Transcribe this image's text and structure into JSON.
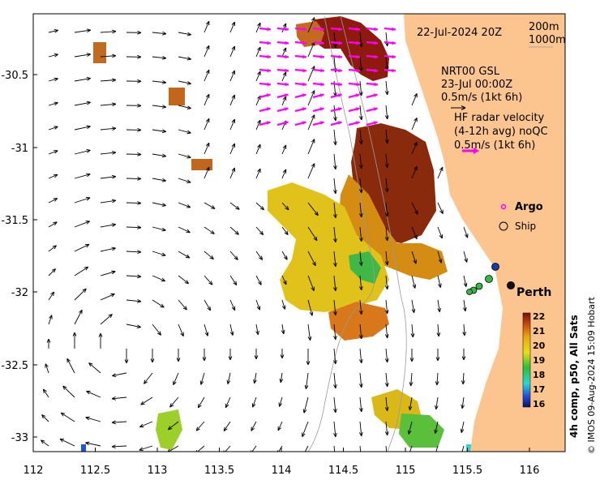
{
  "date_label": "22-Jul-2024 20Z",
  "depth_labels": [
    "200m",
    "1000m"
  ],
  "model_legend": {
    "line1": "NRT00 GSL",
    "line2": "23-Jul 00:00Z",
    "line3": "0.5m/s (1kt 6h)"
  },
  "radar_legend": {
    "line1": "HF radar velocity",
    "line2": "(4-12h avg) noQC",
    "line3": "0.5m/s (1kt 6h)"
  },
  "argo_label": "Argo",
  "ship_label": "Ship",
  "city_label": "Perth",
  "colorbar": {
    "title": "4h comp, p50, All Sats",
    "ticks": [
      "22",
      "21",
      "20",
      "19",
      "18",
      "17",
      "16"
    ],
    "min": 16,
    "max": 22
  },
  "credit": "© IMOS 09-Aug-2024 15:09 Hobart",
  "x_axis_labels": [
    "112",
    "112.5",
    "113",
    "113.5",
    "114",
    "114.5",
    "115",
    "115.5",
    "116"
  ],
  "y_axis_labels": [
    "-30.5",
    "-31",
    "-31.5",
    "-32",
    "-32.5",
    "-33"
  ],
  "colors": {
    "land": "#fcc48f",
    "ocean": "#ffffff",
    "radar_arrow": "#ff00ff",
    "argo_marker": "#ff00ff"
  }
}
